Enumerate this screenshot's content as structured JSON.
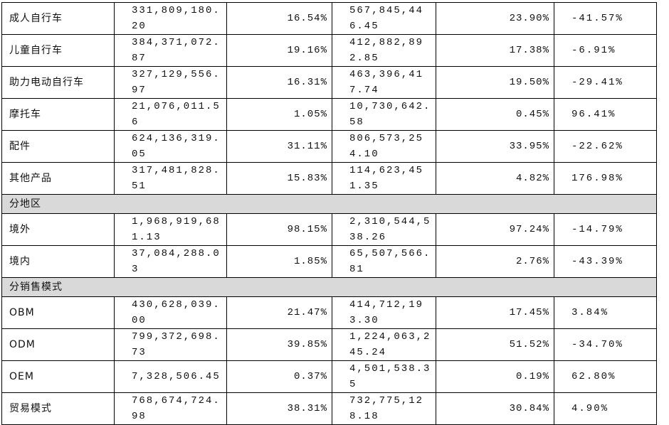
{
  "table": {
    "rows": [
      [
        "成人自行车",
        "331,809,180.20",
        "16.54%",
        "567,845,446.45",
        "23.90%",
        "-41.57%"
      ],
      [
        "儿童自行车",
        "384,371,072.87",
        "19.16%",
        "412,882,892.85",
        "17.38%",
        "-6.91%"
      ],
      [
        "助力电动自行车",
        "327,129,556.97",
        "16.31%",
        "463,396,417.74",
        "19.50%",
        "-29.41%"
      ],
      [
        "摩托车",
        "21,076,011.56",
        "1.05%",
        "10,730,642.58",
        "0.45%",
        "96.41%"
      ],
      [
        "配件",
        "624,136,319.05",
        "31.11%",
        "806,573,254.10",
        "33.95%",
        "-22.62%"
      ],
      [
        "其他产品",
        "317,481,828.51",
        "15.83%",
        "114,623,451.35",
        "4.82%",
        "176.98%"
      ],
      [
        "分地区"
      ],
      [
        "境外",
        "1,968,919,681.13",
        "98.15%",
        "2,310,544,538.26",
        "97.24%",
        "-14.79%"
      ],
      [
        "境内",
        "37,084,288.03",
        "1.85%",
        "65,507,566.81",
        "2.76%",
        "-43.39%"
      ],
      [
        "分销售模式"
      ],
      [
        "OBM",
        "430,628,039.00",
        "21.47%",
        "414,712,193.30",
        "17.45%",
        "3.84%"
      ],
      [
        "ODM",
        "799,372,698.73",
        "39.85%",
        "1,224,063,245.24",
        "51.52%",
        "-34.70%"
      ],
      [
        "OEM",
        "7,328,506.45",
        "0.37%",
        "4,501,538.35",
        "0.19%",
        "62.80%"
      ],
      [
        "贸易模式",
        "768,674,724.98",
        "38.31%",
        "732,775,128.18",
        "30.84%",
        "4.90%"
      ]
    ]
  }
}
